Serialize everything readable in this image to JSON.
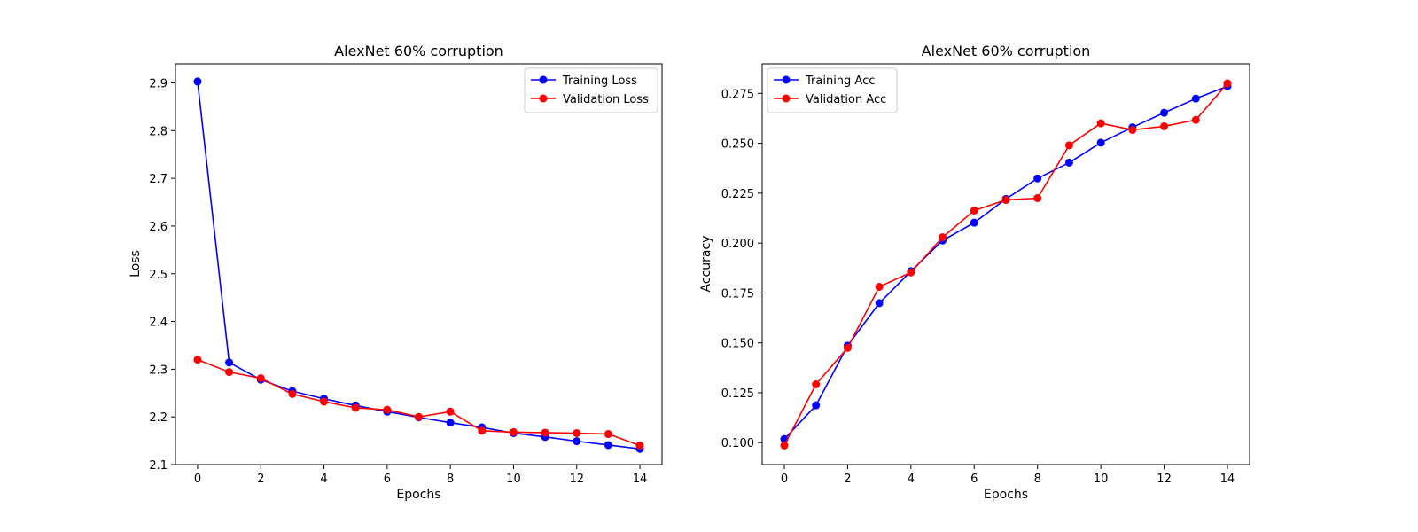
{
  "chart_data": [
    {
      "type": "line",
      "title": "AlexNet 60% corruption",
      "xlabel": "Epochs",
      "ylabel": "Loss",
      "x": [
        0,
        1,
        2,
        3,
        4,
        5,
        6,
        7,
        8,
        9,
        10,
        11,
        12,
        13,
        14
      ],
      "xlim": [
        -0.7,
        14.7
      ],
      "ylim": [
        2.1,
        2.94
      ],
      "xticks": [
        "0",
        "2",
        "4",
        "6",
        "8",
        "10",
        "12",
        "14"
      ],
      "yticks": [
        "2.1",
        "2.2",
        "2.3",
        "2.4",
        "2.5",
        "2.6",
        "2.7",
        "2.8",
        "2.9"
      ],
      "legend": "top-right",
      "grid": false,
      "series": [
        {
          "name": "Training Loss",
          "color": "#0000ff",
          "marker": "circle",
          "values": [
            2.903,
            2.314,
            2.278,
            2.254,
            2.238,
            2.224,
            2.211,
            2.199,
            2.188,
            2.178,
            2.166,
            2.158,
            2.149,
            2.141,
            2.133
          ]
        },
        {
          "name": "Validation Loss",
          "color": "#ff0000",
          "marker": "circle",
          "values": [
            2.32,
            2.294,
            2.281,
            2.248,
            2.232,
            2.219,
            2.215,
            2.2,
            2.211,
            2.171,
            2.168,
            2.167,
            2.166,
            2.164,
            2.14
          ]
        }
      ]
    },
    {
      "type": "line",
      "title": "AlexNet 60% corruption",
      "xlabel": "Epochs",
      "ylabel": "Accuracy",
      "x": [
        0,
        1,
        2,
        3,
        4,
        5,
        6,
        7,
        8,
        9,
        10,
        11,
        12,
        13,
        14
      ],
      "xlim": [
        -0.7,
        14.7
      ],
      "ylim": [
        0.089,
        0.2898
      ],
      "xticks": [
        "0",
        "2",
        "4",
        "6",
        "8",
        "10",
        "12",
        "14"
      ],
      "yticks": [
        "0.100",
        "0.125",
        "0.150",
        "0.175",
        "0.200",
        "0.225",
        "0.250",
        "0.275"
      ],
      "legend": "top-left",
      "grid": false,
      "series": [
        {
          "name": "Training Acc",
          "color": "#0000ff",
          "marker": "circle",
          "values": [
            0.1018,
            0.1187,
            0.1486,
            0.1699,
            0.1859,
            0.2013,
            0.2102,
            0.2221,
            0.2324,
            0.2403,
            0.2503,
            0.258,
            0.2653,
            0.2724,
            0.2786
          ]
        },
        {
          "name": "Validation Acc",
          "color": "#ff0000",
          "marker": "circle",
          "values": [
            0.0986,
            0.1292,
            0.1475,
            0.1781,
            0.1853,
            0.2029,
            0.2163,
            0.2216,
            0.2225,
            0.249,
            0.26,
            0.2567,
            0.2585,
            0.2617,
            0.28
          ]
        }
      ]
    }
  ]
}
